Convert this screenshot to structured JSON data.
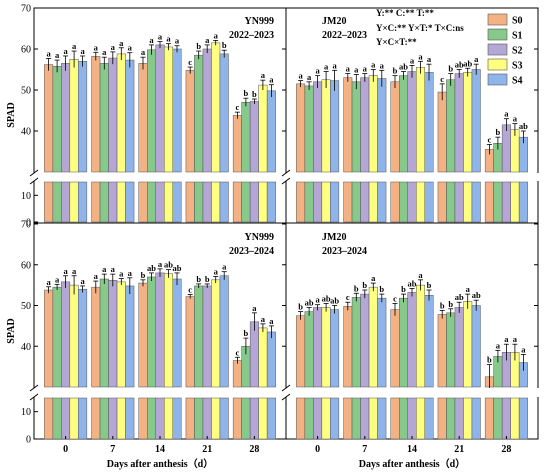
{
  "chart_data": {
    "type": "bar",
    "xlabel": "Days after anthesis（d）",
    "ylabel": "SPAD",
    "categories": [
      "0",
      "7",
      "14",
      "21",
      "28"
    ],
    "series_names": [
      "S0",
      "S1",
      "S2",
      "S3",
      "S4"
    ],
    "colors": {
      "S0": "#f4b183",
      "S1": "#86c98a",
      "S2": "#b4a7d6",
      "S3": "#ffff80",
      "S4": "#8fb4ea"
    },
    "y_upper_ticks": [
      40,
      50,
      60,
      70
    ],
    "y_lower_ticks": [
      0,
      10
    ],
    "y_upper_range": [
      30,
      70
    ],
    "y_lower_range": [
      0,
      15
    ],
    "stats": [
      "Y:** C:** T:**",
      "Y×C:** Y×T:* T×C:ns",
      "Y×C×T:**"
    ],
    "panels": [
      {
        "variety": "YN999",
        "season": "2022–2023",
        "values": [
          [
            56.2,
            55.8,
            56.5,
            57.5,
            57.0
          ],
          [
            58.2,
            56.5,
            57.8,
            58.8,
            57.3
          ],
          [
            56.5,
            59.8,
            61.0,
            60.5,
            60.0
          ],
          [
            54.8,
            58.5,
            60.0,
            61.5,
            58.8
          ],
          [
            43.8,
            47.0,
            47.2,
            51.2,
            49.8
          ]
        ],
        "errors": [
          [
            1.5,
            1.5,
            1.8,
            2.0,
            1.3
          ],
          [
            1.0,
            1.5,
            1.5,
            1.5,
            1.8
          ],
          [
            1.5,
            1.2,
            0.8,
            0.8,
            0.8
          ],
          [
            0.8,
            1.0,
            1.0,
            0.6,
            0.9
          ],
          [
            0.8,
            1.0,
            0.6,
            1.2,
            1.5
          ]
        ],
        "letters": [
          [
            "a",
            "a",
            "a",
            "a",
            "a"
          ],
          [
            "a",
            "a",
            "a",
            "a",
            "a"
          ],
          [
            "a",
            "a",
            "a",
            "a",
            "a"
          ],
          [
            "c",
            "b",
            "a",
            "a",
            "b"
          ],
          [
            "c",
            "b",
            "b",
            "a",
            "a"
          ]
        ]
      },
      {
        "variety": "JM20",
        "season": "2022–2023",
        "values": [
          [
            51.5,
            51.0,
            52.0,
            52.5,
            52.3
          ],
          [
            53.0,
            52.0,
            53.0,
            53.5,
            52.8
          ],
          [
            52.0,
            53.5,
            54.5,
            55.5,
            54.3
          ],
          [
            49.5,
            52.5,
            54.0,
            54.3,
            55.0
          ],
          [
            35.5,
            37.0,
            41.5,
            40.3,
            38.5
          ]
        ],
        "errors": [
          [
            0.8,
            1.0,
            1.5,
            2.0,
            2.5
          ],
          [
            1.0,
            1.8,
            1.0,
            1.5,
            2.0
          ],
          [
            1.5,
            1.0,
            1.5,
            1.5,
            2.0
          ],
          [
            2.0,
            1.5,
            1.0,
            1.0,
            1.3
          ],
          [
            1.2,
            1.5,
            1.5,
            1.5,
            1.5
          ]
        ],
        "letters": [
          [
            "a",
            "a",
            "a",
            "a",
            "a"
          ],
          [
            "a",
            "a",
            "a",
            "a",
            "a"
          ],
          [
            "b",
            "ab",
            "a",
            "a",
            "a"
          ],
          [
            "c",
            "b",
            "ab",
            "ab",
            "a"
          ],
          [
            "c",
            "b",
            "a",
            "a",
            "ab"
          ]
        ]
      },
      {
        "variety": "YN999",
        "season": "2023–2024",
        "values": [
          [
            53.8,
            54.5,
            55.8,
            55.0,
            54.0
          ],
          [
            54.5,
            56.5,
            56.2,
            55.8,
            54.8
          ],
          [
            55.5,
            57.0,
            58.0,
            57.8,
            56.5
          ],
          [
            52.2,
            54.8,
            54.8,
            56.3,
            57.3
          ],
          [
            36.5,
            40.0,
            46.0,
            44.5,
            43.5
          ]
        ],
        "errors": [
          [
            0.8,
            0.7,
            1.5,
            2.3,
            0.8
          ],
          [
            1.5,
            1.2,
            1.5,
            0.8,
            2.0
          ],
          [
            0.8,
            1.0,
            1.0,
            1.0,
            1.5
          ],
          [
            0.5,
            0.5,
            0.5,
            0.8,
            1.0
          ],
          [
            0.8,
            2.0,
            2.2,
            1.0,
            1.5
          ]
        ],
        "letters": [
          [
            "a",
            "a",
            "a",
            "a",
            "a"
          ],
          [
            "a",
            "a",
            "a",
            "a",
            "a"
          ],
          [
            "b",
            "ab",
            "a",
            "ab",
            "ab"
          ],
          [
            "c",
            "b",
            "b",
            "a",
            "a"
          ],
          [
            "c",
            "b",
            "a",
            "a",
            "a"
          ]
        ]
      },
      {
        "variety": "JM20",
        "season": "2023–2024",
        "values": [
          [
            47.5,
            48.5,
            49.5,
            49.5,
            49.0
          ],
          [
            49.8,
            52.0,
            52.8,
            54.5,
            51.8
          ],
          [
            49.0,
            51.8,
            53.2,
            55.0,
            52.5
          ],
          [
            47.8,
            48.2,
            49.5,
            51.0,
            50.0
          ],
          [
            32.5,
            37.5,
            38.5,
            38.5,
            36.0
          ]
        ],
        "errors": [
          [
            1.0,
            1.0,
            0.7,
            1.0,
            1.0
          ],
          [
            1.0,
            1.0,
            1.0,
            1.0,
            1.0
          ],
          [
            1.5,
            1.0,
            1.0,
            1.3,
            1.3
          ],
          [
            1.0,
            1.0,
            1.3,
            1.8,
            1.3
          ],
          [
            3.0,
            1.5,
            2.0,
            2.0,
            2.0
          ]
        ],
        "letters": [
          [
            "b",
            "ab",
            "a",
            "ab",
            "ab"
          ],
          [
            "c",
            "b",
            "b",
            "a",
            "b"
          ],
          [
            "c",
            "b",
            "ab",
            "a",
            "b"
          ],
          [
            "b",
            "b",
            "ab",
            "a",
            "ab"
          ],
          [
            "b",
            "a",
            "a",
            "a",
            "a"
          ]
        ]
      }
    ]
  }
}
